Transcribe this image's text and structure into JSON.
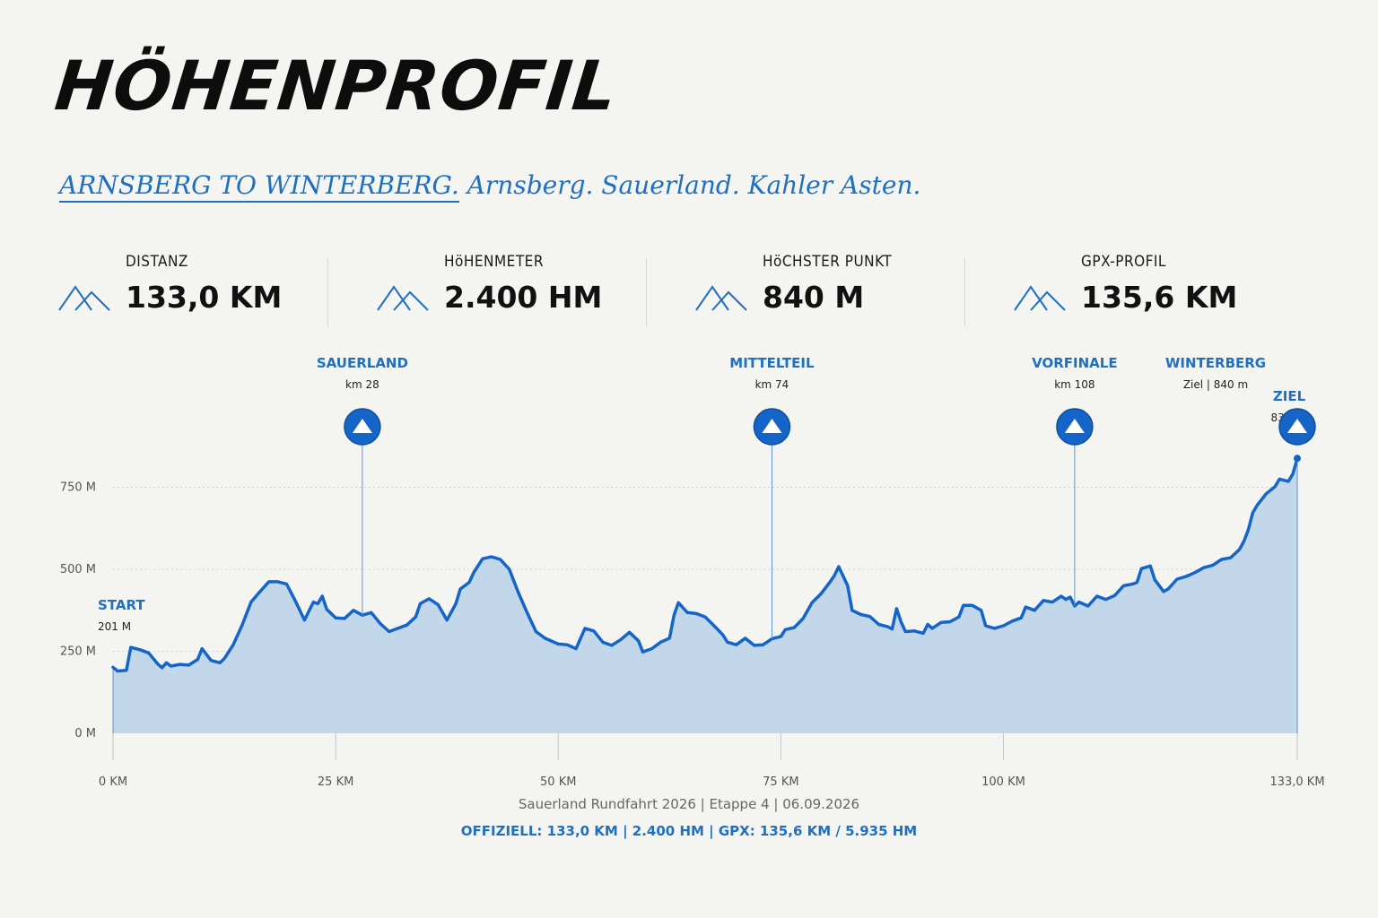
{
  "title": "HÖHENPROFIL",
  "subtitle": {
    "underlined": "ARNSBERG TO WINTERBERG.",
    "rest": " Arnsberg. Sauerland. Kahler Asten."
  },
  "stats": [
    {
      "label": "DISTANZ",
      "value": "133,0 KM",
      "icon": "mountain-icon"
    },
    {
      "label": "HöHENMETER",
      "value": "2.400 HM",
      "icon": "mountain-icon"
    },
    {
      "label": "HöCHSTER PUNKT",
      "value": "840 M",
      "icon": "mountain-icon"
    },
    {
      "label": "GPX-PROFIL",
      "value": "135,6 KM",
      "icon": "mountain-icon"
    }
  ],
  "colors": {
    "accent": "#1f70c1",
    "line": "#1565c8",
    "fill": "#c2d7ea",
    "background": "#f4f4f1"
  },
  "chart_data": {
    "type": "area",
    "xlim": [
      0,
      133
    ],
    "ylim": [
      0,
      900
    ],
    "x_ticks": [
      {
        "value": 0,
        "label": "0 KM"
      },
      {
        "value": 25,
        "label": "25 KM"
      },
      {
        "value": 50,
        "label": "50 KM"
      },
      {
        "value": 75,
        "label": "75 KM"
      },
      {
        "value": 100,
        "label": "100 KM"
      },
      {
        "value": 133,
        "label": "133,0 KM"
      }
    ],
    "y_ticks": [
      {
        "value": 0,
        "label": "0 M"
      },
      {
        "value": 250,
        "label": "250 M"
      },
      {
        "value": 500,
        "label": "500 M"
      },
      {
        "value": 750,
        "label": "750 M"
      }
    ],
    "profile": [
      [
        0,
        201
      ],
      [
        0.5,
        190
      ],
      [
        1.5,
        192
      ],
      [
        2,
        262
      ],
      [
        3,
        255
      ],
      [
        4,
        245
      ],
      [
        5,
        212
      ],
      [
        5.5,
        200
      ],
      [
        6,
        215
      ],
      [
        6.5,
        205
      ],
      [
        7.5,
        210
      ],
      [
        8.5,
        208
      ],
      [
        9.5,
        225
      ],
      [
        10,
        258
      ],
      [
        11,
        222
      ],
      [
        12,
        215
      ],
      [
        12.5,
        228
      ],
      [
        13.5,
        270
      ],
      [
        14.5,
        330
      ],
      [
        15.5,
        400
      ],
      [
        16.5,
        432
      ],
      [
        17.5,
        462
      ],
      [
        18.5,
        462
      ],
      [
        19.5,
        455
      ],
      [
        20.5,
        402
      ],
      [
        21.5,
        345
      ],
      [
        22.5,
        400
      ],
      [
        23,
        395
      ],
      [
        23.5,
        418
      ],
      [
        24,
        378
      ],
      [
        25,
        352
      ],
      [
        26,
        350
      ],
      [
        27,
        375
      ],
      [
        28,
        360
      ],
      [
        29,
        368
      ],
      [
        30,
        335
      ],
      [
        31,
        310
      ],
      [
        32,
        320
      ],
      [
        33,
        330
      ],
      [
        34,
        355
      ],
      [
        34.5,
        395
      ],
      [
        35.5,
        410
      ],
      [
        36.5,
        392
      ],
      [
        37.5,
        345
      ],
      [
        38.5,
        395
      ],
      [
        39,
        440
      ],
      [
        40,
        460
      ],
      [
        40.5,
        490
      ],
      [
        41.5,
        532
      ],
      [
        42.5,
        538
      ],
      [
        43.5,
        530
      ],
      [
        44.5,
        500
      ],
      [
        45.5,
        430
      ],
      [
        46.5,
        368
      ],
      [
        47.5,
        310
      ],
      [
        48.5,
        290
      ],
      [
        50,
        272
      ],
      [
        51,
        270
      ],
      [
        52,
        258
      ],
      [
        53,
        320
      ],
      [
        54,
        312
      ],
      [
        55,
        278
      ],
      [
        56,
        268
      ],
      [
        57,
        285
      ],
      [
        58,
        308
      ],
      [
        59,
        282
      ],
      [
        59.5,
        248
      ],
      [
        60.5,
        258
      ],
      [
        61.5,
        278
      ],
      [
        62.5,
        290
      ],
      [
        63,
        360
      ],
      [
        63.5,
        398
      ],
      [
        64.5,
        368
      ],
      [
        65.5,
        365
      ],
      [
        66.5,
        355
      ],
      [
        67.5,
        328
      ],
      [
        68.5,
        300
      ],
      [
        69,
        278
      ],
      [
        70,
        270
      ],
      [
        71,
        290
      ],
      [
        72,
        268
      ],
      [
        73,
        270
      ],
      [
        74,
        288
      ],
      [
        75,
        295
      ],
      [
        75.5,
        316
      ],
      [
        76.5,
        322
      ],
      [
        77.5,
        350
      ],
      [
        78.5,
        398
      ],
      [
        79.5,
        425
      ],
      [
        80.5,
        460
      ],
      [
        81,
        480
      ],
      [
        81.5,
        508
      ],
      [
        82.5,
        450
      ],
      [
        83,
        375
      ],
      [
        84,
        362
      ],
      [
        85,
        356
      ],
      [
        86,
        332
      ],
      [
        87,
        325
      ],
      [
        87.5,
        318
      ],
      [
        88,
        380
      ],
      [
        88.5,
        340
      ],
      [
        89,
        310
      ],
      [
        90,
        312
      ],
      [
        91,
        305
      ],
      [
        91.5,
        332
      ],
      [
        92,
        320
      ],
      [
        93,
        338
      ],
      [
        94,
        340
      ],
      [
        95,
        355
      ],
      [
        95.5,
        390
      ],
      [
        96.5,
        390
      ],
      [
        97.5,
        375
      ],
      [
        98,
        328
      ],
      [
        99,
        320
      ],
      [
        100,
        328
      ],
      [
        101,
        342
      ],
      [
        102,
        352
      ],
      [
        102.5,
        385
      ],
      [
        103.5,
        375
      ],
      [
        104.5,
        405
      ],
      [
        105.5,
        400
      ],
      [
        106.5,
        418
      ],
      [
        107,
        408
      ],
      [
        107.5,
        415
      ],
      [
        108,
        388
      ],
      [
        108.5,
        400
      ],
      [
        109.5,
        388
      ],
      [
        110.5,
        418
      ],
      [
        111.5,
        408
      ],
      [
        112.5,
        420
      ],
      [
        113.5,
        450
      ],
      [
        114.5,
        455
      ],
      [
        115,
        460
      ],
      [
        115.5,
        502
      ],
      [
        116.5,
        510
      ],
      [
        117,
        468
      ],
      [
        118,
        432
      ],
      [
        118.5,
        440
      ],
      [
        119.5,
        470
      ],
      [
        120.5,
        478
      ],
      [
        121.5,
        490
      ],
      [
        122.5,
        505
      ],
      [
        123.5,
        512
      ],
      [
        124.5,
        530
      ],
      [
        125.5,
        535
      ],
      [
        126.5,
        560
      ],
      [
        127,
        585
      ],
      [
        127.5,
        620
      ],
      [
        128,
        672
      ],
      [
        128.5,
        695
      ],
      [
        129.5,
        730
      ],
      [
        130.5,
        752
      ],
      [
        131,
        775
      ],
      [
        132,
        768
      ],
      [
        132.5,
        790
      ],
      [
        133,
        838
      ]
    ],
    "start": {
      "km": 0,
      "label": "START",
      "sub": "201 M"
    },
    "markers": [
      {
        "km": 28,
        "name": "SAUERLAND",
        "sub": "km 28",
        "icon": "triangle-up-icon"
      },
      {
        "km": 74,
        "name": "MITTELTEIL",
        "sub": "km 74",
        "icon": "triangle-up-icon"
      },
      {
        "km": 108,
        "name": "VORFINALE",
        "sub": "km 108",
        "icon": "triangle-up-icon"
      },
      {
        "km": 133,
        "name": "ZIEL",
        "sub": "836 M",
        "icon": "triangle-up-icon"
      }
    ],
    "extra_label": {
      "name": "WINTERBERG",
      "sub": "Ziel | 840 m"
    }
  },
  "footer": {
    "line1": "Sauerland Rundfahrt 2026 | Etappe 4 | 06.09.2026",
    "line2": "OFFIZIELL: 133,0 KM | 2.400 HM | GPX: 135,6 KM / 5.935 HM"
  }
}
